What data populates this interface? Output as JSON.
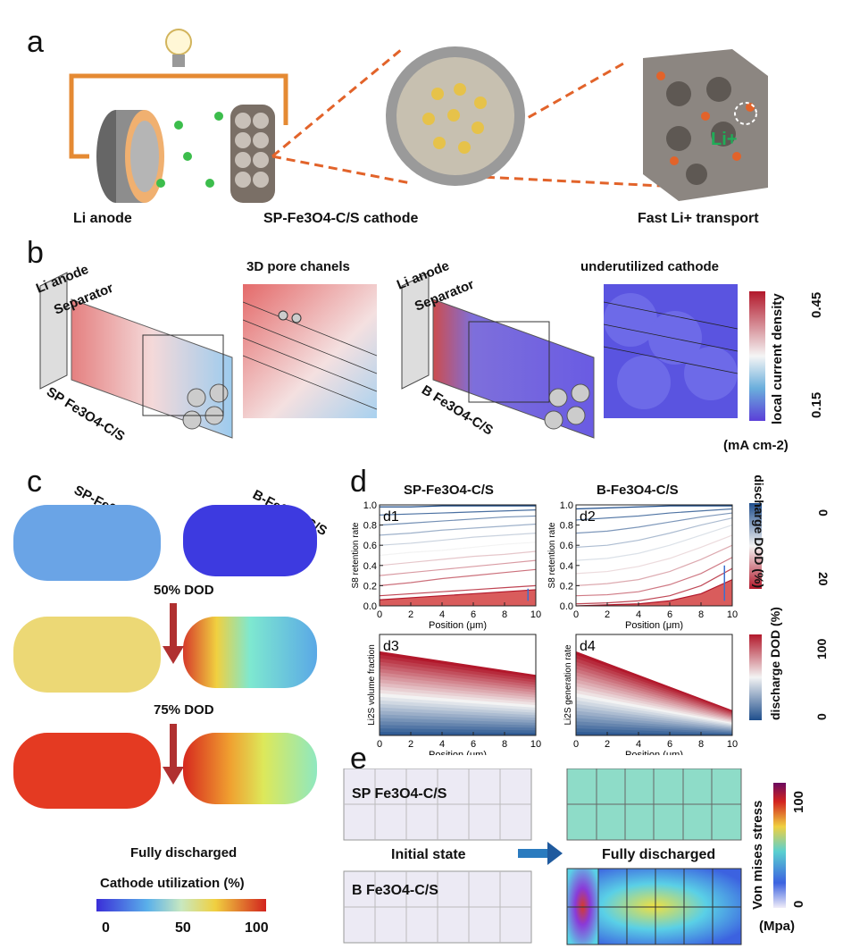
{
  "panels": {
    "a": {
      "label": "a",
      "cap_li_anode": "Li anode",
      "cap_cathode": "SP-Fe3O4-C/S cathode",
      "cap_transport": "Fast Li+ transport",
      "li_marker": "Li+"
    },
    "b": {
      "label": "b",
      "left_li_anode": "Li anode",
      "left_separator": "Separator",
      "left_material": "SP Fe3O4-C/S",
      "title_pores": "3D pore chanels",
      "right_li_anode": "Li anode",
      "right_separator": "Separator",
      "right_material": "B Fe3O4-C/S",
      "title_underutilized": "underutilized cathode",
      "colorbar_title": "local current density",
      "colorbar_max": "0.45",
      "colorbar_min": "0.15",
      "colorbar_unit": "(mA cm-2)"
    },
    "c": {
      "label": "c",
      "sp_label": "SP-Fe3O4-C/S",
      "b_label": "B-Fe3O4-C/S",
      "state_50": "50% DOD",
      "state_75": "75% DOD",
      "state_full": "Fully discharged",
      "util_title": "Cathode utilization (%)",
      "util_ticks": [
        "0",
        "50",
        "100"
      ]
    },
    "d": {
      "label": "d",
      "title_left": "SP-Fe3O4-C/S",
      "title_right": "B-Fe3O4-C/S",
      "sub_labels": [
        "d1",
        "d2",
        "d3",
        "d4"
      ],
      "ylabel_d1": "S8 retention rate",
      "ylabel_d2": "S8 retention rate",
      "ylabel_d3": "Li2S volume fraction",
      "ylabel_d4": "Li2S generation rate",
      "xlabel": "Position (μm)",
      "cb_top_title": "discharge DOD (%)",
      "cb_top_min": "0",
      "cb_top_max": "20",
      "cb_bottom_title": "discharge DOD (%)",
      "cb_bottom_min": "0",
      "cb_bottom_max": "100"
    },
    "e": {
      "label": "e",
      "sp_label": "SP Fe3O4-C/S",
      "b_label": "B Fe3O4-C/S",
      "initial": "Initial state",
      "final": "Fully discharged",
      "cb_title": "Von mises stress",
      "cb_max": "100",
      "cb_min": "0",
      "cb_unit": "(Mpa)"
    }
  },
  "chart_data": [
    {
      "id": "d1",
      "type": "line",
      "xlabel": "Position (μm)",
      "ylabel": "S8 retention rate",
      "xlim": [
        0,
        10
      ],
      "ylim": [
        0,
        1.0
      ],
      "xticks": [
        0,
        2,
        4,
        6,
        8,
        10
      ],
      "yticks": [
        0.0,
        0.2,
        0.4,
        0.6,
        0.8,
        1.0
      ],
      "x": [
        0,
        2,
        4,
        6,
        8,
        10
      ],
      "series": [
        {
          "values": [
            0.98,
            0.98,
            0.99,
            0.99,
            0.99,
            0.99
          ]
        },
        {
          "values": [
            0.9,
            0.91,
            0.92,
            0.93,
            0.94,
            0.95
          ]
        },
        {
          "values": [
            0.8,
            0.82,
            0.84,
            0.86,
            0.88,
            0.89
          ]
        },
        {
          "values": [
            0.7,
            0.72,
            0.75,
            0.77,
            0.79,
            0.81
          ]
        },
        {
          "values": [
            0.6,
            0.62,
            0.65,
            0.68,
            0.7,
            0.72
          ]
        },
        {
          "values": [
            0.5,
            0.53,
            0.55,
            0.58,
            0.61,
            0.63
          ]
        },
        {
          "values": [
            0.4,
            0.43,
            0.46,
            0.49,
            0.51,
            0.54
          ]
        },
        {
          "values": [
            0.3,
            0.33,
            0.36,
            0.39,
            0.42,
            0.45
          ]
        },
        {
          "values": [
            0.2,
            0.23,
            0.27,
            0.3,
            0.33,
            0.36
          ]
        },
        {
          "values": [
            0.1,
            0.12,
            0.14,
            0.16,
            0.18,
            0.2
          ]
        },
        {
          "values": [
            0.06,
            0.08,
            0.1,
            0.12,
            0.14,
            0.16
          ]
        }
      ]
    },
    {
      "id": "d2",
      "type": "line",
      "xlabel": "Position (μm)",
      "ylabel": "S8 retention rate",
      "xlim": [
        0,
        10
      ],
      "ylim": [
        0,
        1.0
      ],
      "xticks": [
        0,
        2,
        4,
        6,
        8,
        10
      ],
      "yticks": [
        0.0,
        0.2,
        0.4,
        0.6,
        0.8,
        1.0
      ],
      "x": [
        0,
        2,
        4,
        6,
        8,
        10
      ],
      "series": [
        {
          "values": [
            0.96,
            0.97,
            0.98,
            0.99,
            0.99,
            0.99
          ]
        },
        {
          "values": [
            0.85,
            0.87,
            0.89,
            0.92,
            0.94,
            0.96
          ]
        },
        {
          "values": [
            0.72,
            0.74,
            0.78,
            0.83,
            0.88,
            0.92
          ]
        },
        {
          "values": [
            0.58,
            0.6,
            0.65,
            0.72,
            0.8,
            0.87
          ]
        },
        {
          "values": [
            0.45,
            0.47,
            0.52,
            0.6,
            0.7,
            0.8
          ]
        },
        {
          "values": [
            0.32,
            0.34,
            0.39,
            0.47,
            0.58,
            0.7
          ]
        },
        {
          "values": [
            0.2,
            0.22,
            0.26,
            0.34,
            0.46,
            0.6
          ]
        },
        {
          "values": [
            0.1,
            0.11,
            0.14,
            0.21,
            0.32,
            0.48
          ]
        },
        {
          "values": [
            0.02,
            0.03,
            0.05,
            0.1,
            0.2,
            0.37
          ]
        },
        {
          "values": [
            0.0,
            0.01,
            0.02,
            0.05,
            0.12,
            0.26
          ]
        }
      ]
    },
    {
      "id": "d3",
      "type": "area",
      "xlabel": "Position (μm)",
      "ylabel": "Li2S volume fraction",
      "xlim": [
        0,
        10
      ],
      "ylim": [
        0,
        1.2
      ],
      "xticks": [
        0,
        2,
        4,
        6,
        8,
        10
      ],
      "x": [
        0,
        10
      ],
      "series": [
        {
          "values": [
            1.0,
            0.72
          ]
        }
      ]
    },
    {
      "id": "d4",
      "type": "area",
      "xlabel": "Position (μm)",
      "ylabel": "Li2S generation rate",
      "xlim": [
        0,
        10
      ],
      "ylim": [
        0,
        1.2
      ],
      "xticks": [
        0,
        2,
        4,
        6,
        8,
        10
      ],
      "x": [
        0,
        10
      ],
      "series": [
        {
          "values": [
            1.0,
            0.3
          ]
        }
      ]
    }
  ],
  "colors": {
    "red": "#c0262a",
    "blue": "#2f58a8",
    "orange": "#e07a2c"
  }
}
